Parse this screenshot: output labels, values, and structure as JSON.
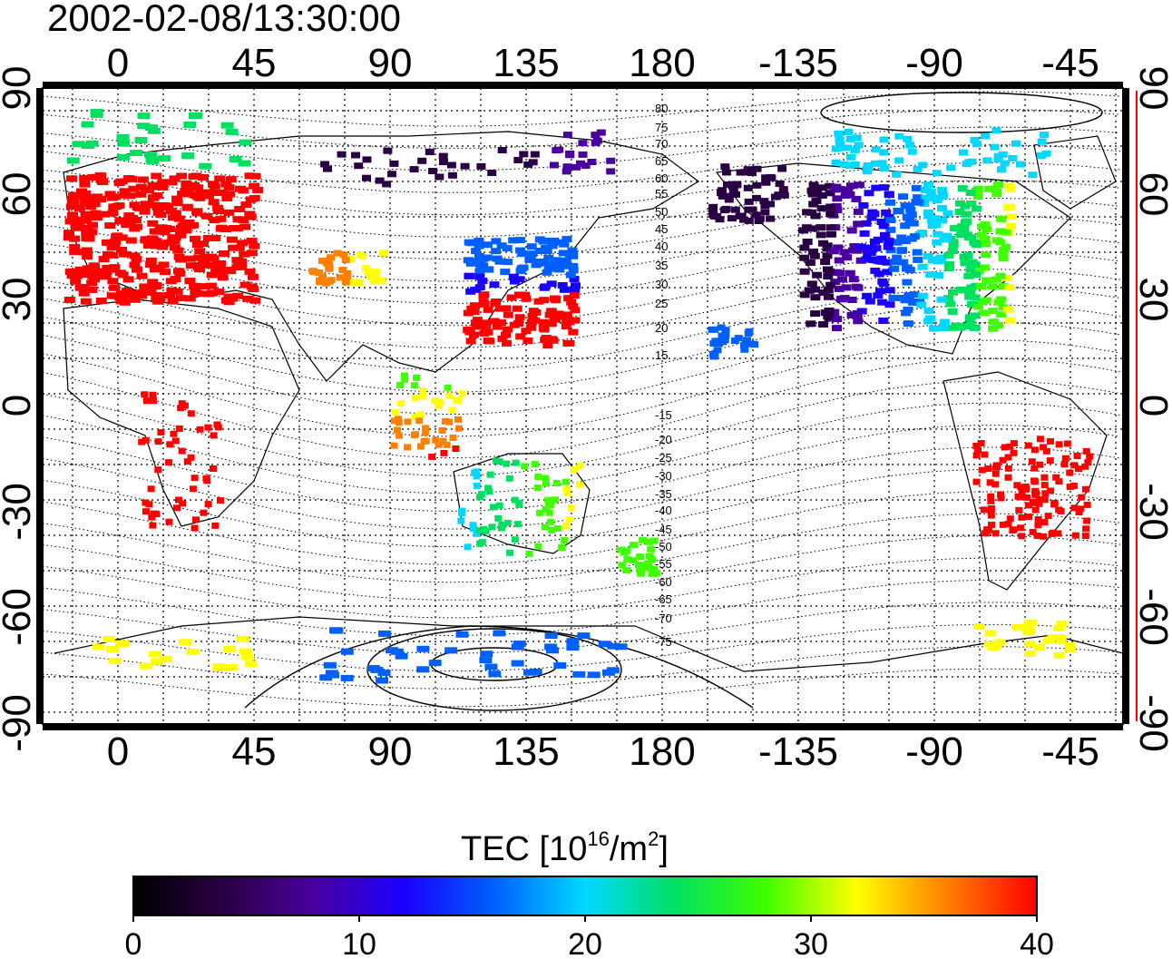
{
  "timestamp": "2002-02-08/13:30:00",
  "lon_ticks": [
    "0",
    "45",
    "90",
    "135",
    "180",
    "-135",
    "-90",
    "-45"
  ],
  "lat_ticks": [
    "90",
    "60",
    "30",
    "0",
    "-30",
    "-60",
    "-90"
  ],
  "contour_labels": [
    "80",
    "75",
    "70",
    "65",
    "60",
    "55",
    "50",
    "45",
    "40",
    "35",
    "30",
    "25",
    "20",
    "15",
    "-15",
    "-20",
    "-25",
    "-30",
    "-35",
    "-40",
    "-45",
    "-50",
    "-55",
    "-60",
    "-65",
    "-70",
    "-75"
  ],
  "colorbar": {
    "title_prefix": "TEC  [10",
    "title_sup1": "16",
    "title_mid": "/m",
    "title_sup2": "2",
    "title_suffix": "]",
    "ticks": [
      "0",
      "10",
      "20",
      "30",
      "40"
    ],
    "min": 0,
    "max": 40
  },
  "colors": {
    "colormap": [
      "#000000",
      "#2a0044",
      "#4a00a0",
      "#1a00ff",
      "#0060ff",
      "#00d8ff",
      "#00e060",
      "#40ff00",
      "#ffff00",
      "#ff8000",
      "#ff0000"
    ],
    "coastline": "#000000",
    "south_axis_marker": "#ff0000"
  }
}
